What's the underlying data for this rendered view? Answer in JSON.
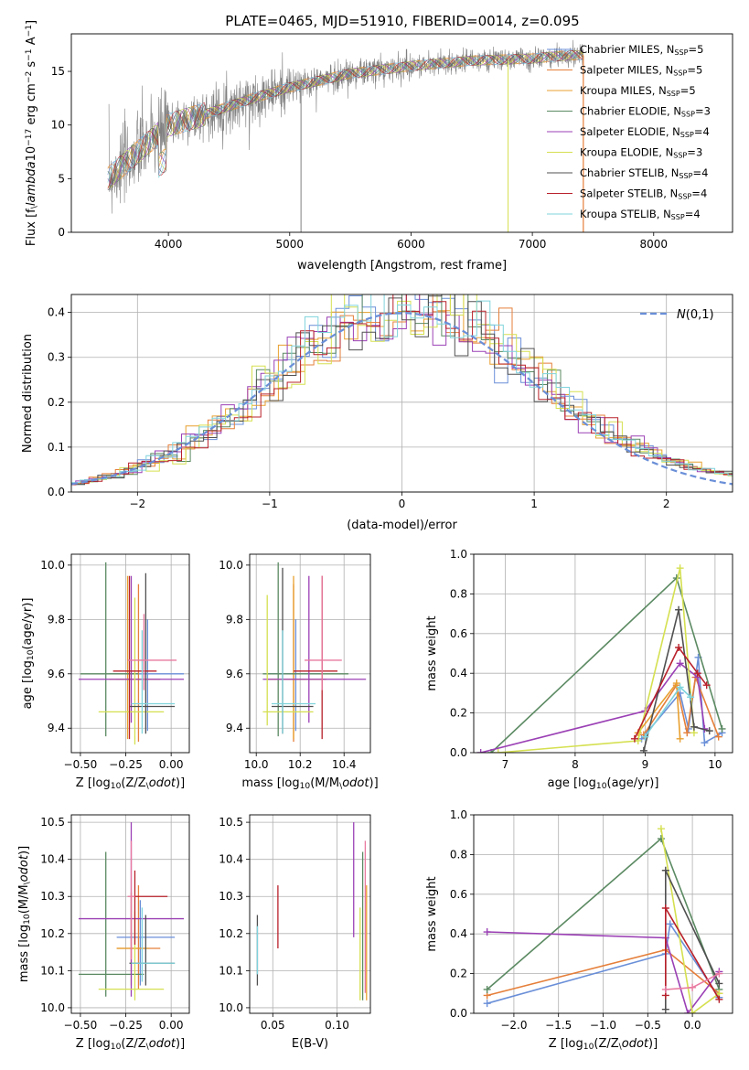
{
  "title": "PLATE=0465, MJD=51910, FIBERID=0014, z=0.095",
  "colors": {
    "observed": "#808080",
    "models": [
      "#6a8fd8",
      "#e57f3a",
      "#e8a030",
      "#5b8a62",
      "#9b40b5",
      "#d5e050",
      "#505050",
      "#b8202a",
      "#7fd3dc",
      "#e87aa0"
    ]
  },
  "chart_data": [
    {
      "id": "spectrum",
      "type": "line",
      "xlabel": "wavelength [Angstrom, rest frame]",
      "ylabel": "Flux [f$_\\lambda$10$^{-17}$ erg cm$^{-2}$ s$^{-1}$ A$^{-1}$]",
      "xlim": [
        3200,
        8650
      ],
      "ylim": [
        0,
        18.5
      ],
      "xticks": [
        "4000",
        "5000",
        "6000",
        "7000",
        "8000"
      ],
      "yticks": [
        "0",
        "5",
        "10",
        "15"
      ],
      "grid": false,
      "legend_position": "top-right",
      "continuum": {
        "x": [
          3500,
          3600,
          3800,
          4000,
          4300,
          4700,
          5000,
          5500,
          6000,
          6500,
          7000,
          7300,
          7420
        ],
        "y": [
          5,
          6,
          8,
          10,
          11,
          12.5,
          13.5,
          14.8,
          15.5,
          16,
          16.2,
          16.5,
          16.5
        ]
      },
      "series": [
        {
          "name": "Chabrier MILES, N$_{SSP}$=5"
        },
        {
          "name": "Salpeter MILES, N$_{SSP}$=5"
        },
        {
          "name": "Kroupa MILES, N$_{SSP}$=5"
        },
        {
          "name": "Chabrier ELODIE, N$_{SSP}$=3"
        },
        {
          "name": "Salpeter ELODIE, N$_{SSP}$=4"
        },
        {
          "name": "Kroupa ELODIE, N$_{SSP}$=3"
        },
        {
          "name": "Chabrier STELIB, N$_{SSP}$=4"
        },
        {
          "name": "Salpeter STELIB, N$_{SSP}$=4"
        },
        {
          "name": "Kroupa STELIB, N$_{SSP}$=4"
        }
      ]
    },
    {
      "id": "residuals",
      "type": "line",
      "xlabel": "(data-model)/error",
      "ylabel": "Normed distribution",
      "xlim": [
        -2.5,
        2.5
      ],
      "ylim": [
        0,
        0.44
      ],
      "xticks": [
        "−2",
        "−1",
        "0",
        "1",
        "2"
      ],
      "yticks": [
        "0.0",
        "0.1",
        "0.2",
        "0.3",
        "0.4"
      ],
      "grid": true,
      "legend_position": "top-right",
      "legend": "$\\mathcal{N}(0,1)$",
      "bin_width": 0.1
    },
    {
      "id": "age-Z",
      "type": "scatter",
      "xlabel": "Z [log$_{10}$(Z/Z$_\\odot$)]",
      "ylabel": "age  [log$_{10}$(age/yr)]",
      "xlim": [
        -0.55,
        0.1
      ],
      "ylim": [
        9.31,
        10.04
      ],
      "xticks": [
        "−0.50",
        "−0.25",
        "0.00"
      ],
      "yticks": [
        "9.4",
        "9.6",
        "9.8",
        "10.0"
      ],
      "grid": true,
      "points": [
        {
          "x": -0.13,
          "y": 9.6,
          "ex": [
            -0.34,
            0.07
          ],
          "ey": [
            9.39,
            9.8
          ],
          "c": 0
        },
        {
          "x": -0.18,
          "y": 9.58,
          "ex": [
            -0.3,
            -0.06
          ],
          "ey": [
            9.35,
            9.93
          ],
          "c": 1
        },
        {
          "x": -0.24,
          "y": 9.58,
          "ex": [
            -0.34,
            -0.12
          ],
          "ey": [
            9.36,
            9.96
          ],
          "c": 2
        },
        {
          "x": -0.36,
          "y": 9.6,
          "ex": [
            -0.5,
            -0.18
          ],
          "ey": [
            9.37,
            10.01
          ],
          "c": 3
        },
        {
          "x": -0.22,
          "y": 9.58,
          "ex": [
            -0.51,
            0.07
          ],
          "ey": [
            9.42,
            9.96
          ],
          "c": 4
        },
        {
          "x": -0.2,
          "y": 9.46,
          "ex": [
            -0.4,
            -0.04
          ],
          "ey": [
            9.34,
            9.88
          ],
          "c": 5
        },
        {
          "x": -0.14,
          "y": 9.48,
          "ex": [
            -0.23,
            0.02
          ],
          "ey": [
            9.38,
            9.97
          ],
          "c": 6
        },
        {
          "x": -0.23,
          "y": 9.61,
          "ex": [
            -0.32,
            -0.08
          ],
          "ey": [
            9.36,
            9.96
          ],
          "c": 7
        },
        {
          "x": -0.16,
          "y": 9.49,
          "ex": [
            -0.22,
            0.02
          ],
          "ey": [
            9.38,
            9.76
          ],
          "c": 8
        },
        {
          "x": -0.15,
          "y": 9.65,
          "ex": [
            -0.24,
            0.03
          ],
          "ey": [
            9.54,
            9.82
          ],
          "c": 9
        }
      ]
    },
    {
      "id": "age-mass",
      "type": "scatter",
      "xlabel": "mass [log$_{10}$(M/M$_\\odot$)]",
      "ylabel": "",
      "xlim": [
        9.97,
        10.52
      ],
      "ylim": [
        9.31,
        10.04
      ],
      "xticks": [
        "10.0",
        "10.2",
        "10.4"
      ],
      "yticks": [
        "9.4",
        "9.6",
        "9.8",
        "10.0"
      ],
      "grid": true,
      "points": [
        {
          "x": 10.18,
          "y": 9.6,
          "ex": [
            10.06,
            10.29
          ],
          "ey": [
            9.39,
            9.8
          ],
          "c": 0
        },
        {
          "x": 10.17,
          "y": 9.58,
          "ex": [
            10.05,
            10.32
          ],
          "ey": [
            9.35,
            9.93
          ],
          "c": 1
        },
        {
          "x": 10.17,
          "y": 9.58,
          "ex": [
            10.06,
            10.31
          ],
          "ey": [
            9.36,
            9.96
          ],
          "c": 2
        },
        {
          "x": 10.1,
          "y": 9.6,
          "ex": [
            10.03,
            10.42
          ],
          "ey": [
            9.37,
            10.01
          ],
          "c": 3
        },
        {
          "x": 10.24,
          "y": 9.58,
          "ex": [
            10.03,
            10.5
          ],
          "ey": [
            9.42,
            9.96
          ],
          "c": 4
        },
        {
          "x": 10.05,
          "y": 9.46,
          "ex": [
            10.03,
            10.26
          ],
          "ey": [
            9.41,
            9.89
          ],
          "c": 5
        },
        {
          "x": 10.12,
          "y": 9.48,
          "ex": [
            10.07,
            10.26
          ],
          "ey": [
            9.38,
            9.99
          ],
          "c": 6
        },
        {
          "x": 10.3,
          "y": 9.61,
          "ex": [
            10.17,
            10.37
          ],
          "ey": [
            9.36,
            9.96
          ],
          "c": 7
        },
        {
          "x": 10.12,
          "y": 9.49,
          "ex": [
            10.07,
            10.27
          ],
          "ey": [
            9.38,
            9.76
          ],
          "c": 8
        },
        {
          "x": 10.3,
          "y": 9.65,
          "ex": [
            10.22,
            10.39
          ],
          "ey": [
            9.54,
            9.96
          ],
          "c": 9
        }
      ]
    },
    {
      "id": "weight-age",
      "type": "line",
      "xlabel": "age  [log$_{10}$(age/yr)]",
      "ylabel": "mass weight",
      "xlim": [
        6.55,
        10.25
      ],
      "ylim": [
        0,
        1
      ],
      "xticks": [
        "7",
        "8",
        "9",
        "10"
      ],
      "yticks": [
        "0.0",
        "0.2",
        "0.4",
        "0.6",
        "0.8",
        "1.0"
      ],
      "grid": true,
      "series": [
        {
          "c": 0,
          "x": [
            8.95,
            9.5,
            9.62,
            9.76,
            9.85,
            10.1
          ],
          "y": [
            0.07,
            0.3,
            0.12,
            0.48,
            0.05,
            0.1
          ]
        },
        {
          "c": 1,
          "x": [
            8.98,
            9.45,
            9.6,
            9.72,
            10.05
          ],
          "y": [
            0.09,
            0.34,
            0.1,
            0.38,
            0.08
          ]
        },
        {
          "c": 2,
          "x": [
            8.9,
            9.45,
            9.5
          ],
          "y": [
            0.1,
            0.35,
            0.07
          ]
        },
        {
          "c": 3,
          "x": [
            6.8,
            9.45,
            10.1
          ],
          "y": [
            0.0,
            0.88,
            0.12
          ]
        },
        {
          "c": 4,
          "x": [
            6.65,
            9.0,
            9.5,
            9.75,
            9.85
          ],
          "y": [
            0.0,
            0.21,
            0.45,
            0.38,
            0.12
          ]
        },
        {
          "c": 5,
          "x": [
            6.9,
            8.9,
            9.5,
            9.7
          ],
          "y": [
            0.0,
            0.06,
            0.93,
            0.1
          ]
        },
        {
          "c": 6,
          "x": [
            8.98,
            9.48,
            9.7,
            9.92
          ],
          "y": [
            0.01,
            0.72,
            0.13,
            0.11
          ]
        },
        {
          "c": 7,
          "x": [
            8.85,
            9.48,
            9.75,
            9.88
          ],
          "y": [
            0.07,
            0.53,
            0.4,
            0.34
          ]
        },
        {
          "c": 8,
          "x": [
            9.0,
            9.5,
            9.65
          ],
          "y": [
            0.08,
            0.33,
            0.28
          ]
        }
      ]
    },
    {
      "id": "mass-Z",
      "type": "scatter",
      "xlabel": "Z [log$_{10}$(Z/Z$_\\odot$)]",
      "ylabel": "mass [log$_{10}$(M/M$_\\odot$)]",
      "xlim": [
        -0.55,
        0.1
      ],
      "ylim": [
        9.985,
        10.52
      ],
      "xticks": [
        "−0.50",
        "−0.25",
        "0.00"
      ],
      "yticks": [
        "10.0",
        "10.1",
        "10.2",
        "10.3",
        "10.4",
        "10.5"
      ],
      "grid": true,
      "points": [
        {
          "x": -0.17,
          "y": 10.19,
          "ex": [
            -0.3,
            0.02
          ],
          "ey": [
            10.06,
            10.29
          ],
          "c": 0
        },
        {
          "x": -0.18,
          "y": 10.16,
          "ex": [
            -0.3,
            -0.06
          ],
          "ey": [
            10.05,
            10.33
          ],
          "c": 1
        },
        {
          "x": -0.22,
          "y": 10.16,
          "ex": [
            -0.3,
            -0.12
          ],
          "ey": [
            10.06,
            10.31
          ],
          "c": 2
        },
        {
          "x": -0.36,
          "y": 10.09,
          "ex": [
            -0.51,
            -0.15
          ],
          "ey": [
            10.03,
            10.42
          ],
          "c": 3
        },
        {
          "x": -0.22,
          "y": 10.24,
          "ex": [
            -0.51,
            0.07
          ],
          "ey": [
            10.03,
            10.5
          ],
          "c": 4
        },
        {
          "x": -0.2,
          "y": 10.05,
          "ex": [
            -0.4,
            -0.04
          ],
          "ey": [
            10.02,
            10.26
          ],
          "c": 5
        },
        {
          "x": -0.14,
          "y": 10.12,
          "ex": [
            -0.23,
            0.02
          ],
          "ey": [
            10.06,
            10.25
          ],
          "c": 6
        },
        {
          "x": -0.2,
          "y": 10.3,
          "ex": [
            -0.2,
            -0.02
          ],
          "ey": [
            10.17,
            10.37
          ],
          "c": 7
        },
        {
          "x": -0.16,
          "y": 10.12,
          "ex": [
            -0.22,
            0.02
          ],
          "ey": [
            10.07,
            10.27
          ],
          "c": 8
        },
        {
          "x": -0.22,
          "y": 10.3,
          "ex": [
            -0.24,
            -0.2
          ],
          "ey": [
            10.13,
            10.45
          ],
          "c": 9
        }
      ]
    },
    {
      "id": "mass-EBV",
      "type": "scatter",
      "xlabel": "E(B-V)",
      "ylabel": "",
      "xlim": [
        0.032,
        0.126
      ],
      "ylim": [
        9.985,
        10.52
      ],
      "xticks": [
        "0.05",
        "0.10"
      ],
      "yticks": [
        "10.0",
        "10.1",
        "10.2",
        "10.3",
        "10.4",
        "10.5"
      ],
      "grid": true,
      "points": [
        {
          "x": 0.038,
          "ey": [
            10.06,
            10.25
          ],
          "c": 6
        },
        {
          "x": 0.038,
          "ey": [
            10.09,
            10.22
          ],
          "c": 8
        },
        {
          "x": 0.054,
          "ey": [
            10.16,
            10.33
          ],
          "c": 7
        },
        {
          "x": 0.113,
          "ey": [
            10.19,
            10.5
          ],
          "c": 4
        },
        {
          "x": 0.118,
          "ey": [
            10.02,
            10.27
          ],
          "c": 5
        },
        {
          "x": 0.12,
          "ey": [
            10.02,
            10.42
          ],
          "c": 3
        },
        {
          "x": 0.122,
          "ey": [
            10.04,
            10.45
          ],
          "c": 9
        },
        {
          "x": 0.123,
          "ey": [
            10.02,
            10.33
          ],
          "c": 2
        }
      ]
    },
    {
      "id": "weight-Z",
      "type": "line",
      "xlabel": "Z [log$_{10}$(Z/Z$_\\odot$)]",
      "ylabel": "mass weight",
      "xlim": [
        -2.45,
        0.45
      ],
      "ylim": [
        0,
        1
      ],
      "xticks": [
        "−2.0",
        "−1.5",
        "−1.0",
        "−0.5",
        "0.0"
      ],
      "yticks": [
        "0.0",
        "0.2",
        "0.4",
        "0.6",
        "0.8",
        "1.0"
      ],
      "grid": true,
      "series": [
        {
          "c": 0,
          "x": [
            -2.3,
            -0.3,
            -0.25,
            0.3
          ],
          "y": [
            0.05,
            0.3,
            0.45,
            0.08
          ]
        },
        {
          "c": 1,
          "x": [
            -2.3,
            -0.3,
            0.3
          ],
          "y": [
            0.09,
            0.32,
            0.1
          ]
        },
        {
          "c": 3,
          "x": [
            -2.3,
            -0.35,
            0.3
          ],
          "y": [
            0.12,
            0.88,
            0.12
          ]
        },
        {
          "c": 4,
          "x": [
            -2.3,
            -0.3,
            -0.05,
            0.3
          ],
          "y": [
            0.41,
            0.38,
            0.0,
            0.21
          ]
        },
        {
          "c": 5,
          "x": [
            -0.35,
            0.0,
            0.3
          ],
          "y": [
            0.93,
            0.0,
            0.1
          ]
        },
        {
          "c": 6,
          "x": [
            -0.3,
            -0.3,
            0.3
          ],
          "y": [
            0.02,
            0.72,
            0.15
          ]
        },
        {
          "c": 7,
          "x": [
            -0.3,
            -0.3,
            0.3
          ],
          "y": [
            0.09,
            0.53,
            0.07
          ]
        },
        {
          "c": 9,
          "x": [
            -0.3,
            0.0,
            0.3
          ],
          "y": [
            0.12,
            0.13,
            0.2
          ]
        }
      ]
    }
  ]
}
